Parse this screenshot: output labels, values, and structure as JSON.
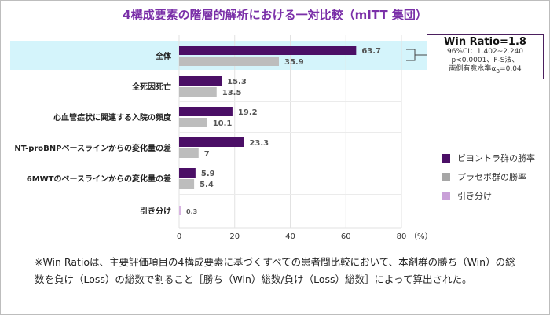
{
  "title": "4構成要素の階層的解析における一対比較（mITT 集団）",
  "colors": {
    "title": "#7a2fa8",
    "vyndaqel": "#4b0f66",
    "placebo": "#bdbdbd",
    "tie": "#d8b4e2",
    "highlight": "#d4f4fb"
  },
  "chart_data": {
    "type": "bar",
    "orientation": "horizontal",
    "categories": [
      "全体",
      "全死因死亡",
      "心血管症状に関連する入院の頻度",
      "NT-proBNPベースラインからの変化量の差",
      "6MWTのベースラインからの変化量の差",
      "引き分け"
    ],
    "series": [
      {
        "name": "ビヨントラ群の勝率",
        "values": [
          63.7,
          15.3,
          19.2,
          23.3,
          5.9,
          null
        ]
      },
      {
        "name": "プラセボ群の勝率",
        "values": [
          35.9,
          13.5,
          10.1,
          7,
          5.4,
          null
        ]
      },
      {
        "name": "引き分け",
        "values": [
          null,
          null,
          null,
          null,
          null,
          0.3
        ]
      }
    ],
    "xlim": [
      0,
      80
    ],
    "xticks": [
      "0",
      "20",
      "40",
      "60",
      "80"
    ],
    "xunit": "（%）",
    "grid": true,
    "highlighted_category": "全体",
    "legend_position": "right"
  },
  "win_ratio": {
    "heading": "Win Ratio=1.8",
    "ci": "96%CI：1.402~2.240",
    "p": "p<0.0001、F-S法、",
    "alpha_prefix": "両側有意水準α",
    "alpha_sub": "B",
    "alpha_suffix": "=0.04"
  },
  "footnote": "※Win Ratioは、主要評価項目の4構成要素に基づくすべての患者間比較において、本剤群の勝ち（Win）の総数を負け（Loss）の総数で割ること［勝ち（Win）総数/負け（Loss）総数］によって算出された。"
}
